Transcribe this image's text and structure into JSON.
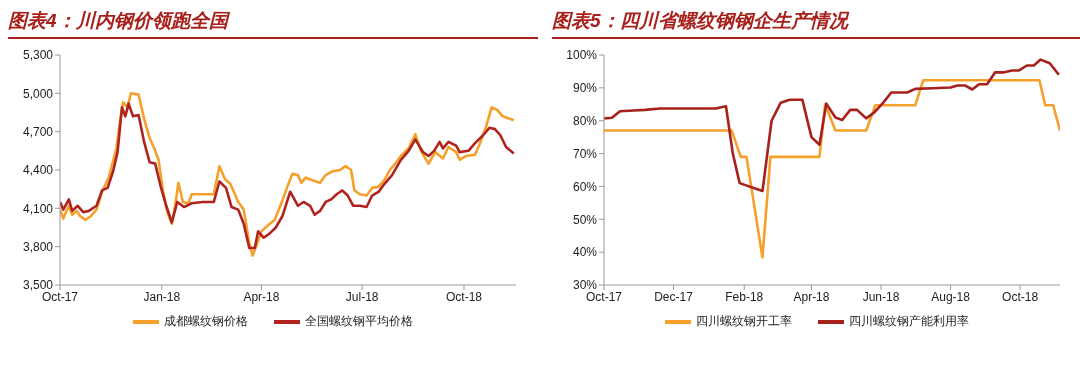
{
  "chart_data": [
    {
      "type": "line",
      "title": "图表4：川内钢价领跑全国",
      "legend": "bottom",
      "xlim": [
        "2017-10-01",
        "2018-11-17"
      ],
      "ylim": [
        3500,
        5300
      ],
      "xticks": [
        {
          "value": "2017-10-01",
          "label": "Oct-17"
        },
        {
          "value": "2018-01-01",
          "label": "Jan-18"
        },
        {
          "value": "2018-04-01",
          "label": "Apr-18"
        },
        {
          "value": "2018-07-01",
          "label": "Jul-18"
        },
        {
          "value": "2018-10-01",
          "label": "Oct-18"
        }
      ],
      "yticks": [
        {
          "value": 3500,
          "label": "3,500"
        },
        {
          "value": 3800,
          "label": "3,800"
        },
        {
          "value": 4100,
          "label": "4,100"
        },
        {
          "value": 4400,
          "label": "4,400"
        },
        {
          "value": 4700,
          "label": "4,700"
        },
        {
          "value": 5000,
          "label": "5,000"
        },
        {
          "value": 5300,
          "label": "5,300"
        }
      ],
      "series": [
        {
          "name": "成都螺纹钢价格",
          "color": "#f5a02a",
          "x": [
            "2017-10-01",
            "2017-10-04",
            "2017-10-09",
            "2017-10-12",
            "2017-10-16",
            "2017-10-19",
            "2017-10-24",
            "2017-10-29",
            "2017-11-03",
            "2017-11-08",
            "2017-11-14",
            "2017-11-21",
            "2017-11-24",
            "2017-11-27",
            "2017-12-01",
            "2017-12-04",
            "2017-12-11",
            "2017-12-16",
            "2017-12-21",
            "2017-12-26",
            "2017-12-29",
            "2018-01-02",
            "2018-01-06",
            "2018-01-10",
            "2018-01-13",
            "2018-01-16",
            "2018-01-20",
            "2018-01-25",
            "2018-01-28",
            "2018-02-07",
            "2018-02-17",
            "2018-02-22",
            "2018-02-27",
            "2018-03-04",
            "2018-03-11",
            "2018-03-16",
            "2018-03-21",
            "2018-03-24",
            "2018-03-28",
            "2018-04-01",
            "2018-04-06",
            "2018-04-13",
            "2018-04-19",
            "2018-04-24",
            "2018-04-29",
            "2018-05-04",
            "2018-05-07",
            "2018-05-11",
            "2018-05-17",
            "2018-05-24",
            "2018-05-29",
            "2018-06-04",
            "2018-06-11",
            "2018-06-16",
            "2018-06-21",
            "2018-06-24",
            "2018-06-29",
            "2018-07-05",
            "2018-07-10",
            "2018-07-16",
            "2018-07-21",
            "2018-07-26",
            "2018-07-31",
            "2018-08-05",
            "2018-08-12",
            "2018-08-18",
            "2018-08-23",
            "2018-08-30",
            "2018-09-05",
            "2018-09-12",
            "2018-09-17",
            "2018-09-24",
            "2018-09-27",
            "2018-10-03",
            "2018-10-11",
            "2018-10-16",
            "2018-10-21",
            "2018-10-26",
            "2018-10-31",
            "2018-11-05",
            "2018-11-15"
          ],
          "values": [
            4090,
            4020,
            4120,
            4050,
            4080,
            4040,
            4010,
            4040,
            4090,
            4230,
            4340,
            4570,
            4770,
            4930,
            4890,
            5000,
            4990,
            4800,
            4650,
            4550,
            4480,
            4240,
            4070,
            3980,
            4120,
            4300,
            4150,
            4140,
            4210,
            4210,
            4210,
            4430,
            4330,
            4290,
            4150,
            4090,
            3830,
            3730,
            3820,
            3920,
            3960,
            4010,
            4140,
            4260,
            4370,
            4360,
            4300,
            4340,
            4320,
            4300,
            4360,
            4390,
            4400,
            4430,
            4400,
            4240,
            4210,
            4200,
            4260,
            4270,
            4320,
            4400,
            4450,
            4510,
            4570,
            4680,
            4550,
            4450,
            4540,
            4490,
            4580,
            4540,
            4480,
            4510,
            4520,
            4620,
            4740,
            4890,
            4870,
            4820,
            4790
          ]
        },
        {
          "name": "全国螺纹钢平均价格",
          "color": "#b0241f",
          "x": [
            "2017-10-01",
            "2017-10-04",
            "2017-10-09",
            "2017-10-12",
            "2017-10-17",
            "2017-10-22",
            "2017-10-27",
            "2017-11-03",
            "2017-11-08",
            "2017-11-13",
            "2017-11-18",
            "2017-11-22",
            "2017-11-26",
            "2017-11-29",
            "2017-12-02",
            "2017-12-06",
            "2017-12-11",
            "2017-12-16",
            "2017-12-21",
            "2017-12-26",
            "2017-12-31",
            "2018-01-05",
            "2018-01-10",
            "2018-01-15",
            "2018-01-21",
            "2018-01-28",
            "2018-02-07",
            "2018-02-17",
            "2018-02-22",
            "2018-02-28",
            "2018-03-05",
            "2018-03-11",
            "2018-03-16",
            "2018-03-21",
            "2018-03-26",
            "2018-03-29",
            "2018-04-03",
            "2018-04-08",
            "2018-04-14",
            "2018-04-20",
            "2018-04-27",
            "2018-05-04",
            "2018-05-09",
            "2018-05-15",
            "2018-05-19",
            "2018-05-24",
            "2018-05-29",
            "2018-06-03",
            "2018-06-08",
            "2018-06-13",
            "2018-06-18",
            "2018-06-23",
            "2018-06-29",
            "2018-07-05",
            "2018-07-10",
            "2018-07-16",
            "2018-07-21",
            "2018-07-28",
            "2018-08-05",
            "2018-08-12",
            "2018-08-18",
            "2018-08-25",
            "2018-08-30",
            "2018-09-04",
            "2018-09-09",
            "2018-09-12",
            "2018-09-17",
            "2018-09-24",
            "2018-09-27",
            "2018-10-05",
            "2018-10-11",
            "2018-10-18",
            "2018-10-24",
            "2018-10-29",
            "2018-11-03",
            "2018-11-08",
            "2018-11-15"
          ],
          "values": [
            4150,
            4090,
            4170,
            4080,
            4120,
            4070,
            4080,
            4120,
            4240,
            4260,
            4390,
            4540,
            4890,
            4820,
            4920,
            4820,
            4830,
            4620,
            4460,
            4450,
            4270,
            4120,
            3990,
            4150,
            4110,
            4140,
            4150,
            4150,
            4310,
            4260,
            4110,
            4090,
            3980,
            3790,
            3790,
            3920,
            3870,
            3900,
            3950,
            4040,
            4230,
            4120,
            4150,
            4120,
            4050,
            4080,
            4150,
            4170,
            4210,
            4240,
            4200,
            4120,
            4120,
            4110,
            4200,
            4230,
            4290,
            4360,
            4480,
            4550,
            4640,
            4540,
            4510,
            4550,
            4620,
            4570,
            4620,
            4590,
            4540,
            4550,
            4610,
            4670,
            4730,
            4720,
            4670,
            4580,
            4530
          ]
        }
      ]
    },
    {
      "type": "line",
      "title": "图表5：四川省螺纹钢钢企生产情况",
      "legend": "bottom",
      "xlim": [
        "2017-10-01",
        "2018-11-05"
      ],
      "ylim": [
        30,
        100
      ],
      "xticks": [
        {
          "value": "2017-10-01",
          "label": "Oct-17"
        },
        {
          "value": "2017-12-01",
          "label": "Dec-17"
        },
        {
          "value": "2018-02-01",
          "label": "Feb-18"
        },
        {
          "value": "2018-04-01",
          "label": "Apr-18"
        },
        {
          "value": "2018-06-01",
          "label": "Jun-18"
        },
        {
          "value": "2018-08-01",
          "label": "Aug-18"
        },
        {
          "value": "2018-10-01",
          "label": "Oct-18"
        }
      ],
      "yticks": [
        {
          "value": 30,
          "label": "30%"
        },
        {
          "value": 40,
          "label": "40%"
        },
        {
          "value": 50,
          "label": "50%"
        },
        {
          "value": 60,
          "label": "60%"
        },
        {
          "value": 70,
          "label": "70%"
        },
        {
          "value": 80,
          "label": "80%"
        },
        {
          "value": 90,
          "label": "90%"
        },
        {
          "value": 100,
          "label": "100%"
        }
      ],
      "series": [
        {
          "name": "四川螺纹钢开工率",
          "color": "#f5a02a",
          "x": [
            "2017-10-01",
            "2018-01-21",
            "2018-01-29",
            "2018-02-03",
            "2018-02-17",
            "2018-02-24",
            "2018-04-08",
            "2018-04-13",
            "2018-04-22",
            "2018-05-19",
            "2018-05-27",
            "2018-07-01",
            "2018-07-08",
            "2018-10-18",
            "2018-10-23",
            "2018-10-30",
            "2018-11-05"
          ],
          "values": [
            77,
            77,
            69,
            69,
            38.4,
            69,
            69,
            85,
            77,
            77,
            84.7,
            84.7,
            92.3,
            92.3,
            84.7,
            84.7,
            77
          ]
        },
        {
          "name": "四川螺纹钢产能利用率",
          "color": "#a8201c",
          "x": [
            "2017-10-01",
            "2017-10-08",
            "2017-10-15",
            "2017-10-27",
            "2017-11-06",
            "2017-11-19",
            "2017-12-14",
            "2018-01-07",
            "2018-01-16",
            "2018-01-22",
            "2018-01-28",
            "2018-02-17",
            "2018-02-25",
            "2018-03-05",
            "2018-03-13",
            "2018-03-24",
            "2018-04-01",
            "2018-04-08",
            "2018-04-14",
            "2018-04-22",
            "2018-04-28",
            "2018-05-05",
            "2018-05-11",
            "2018-05-19",
            "2018-05-26",
            "2018-06-03",
            "2018-06-10",
            "2018-06-24",
            "2018-07-01",
            "2018-07-16",
            "2018-08-01",
            "2018-08-07",
            "2018-08-14",
            "2018-08-20",
            "2018-08-26",
            "2018-09-02",
            "2018-09-09",
            "2018-09-16",
            "2018-09-24",
            "2018-09-30",
            "2018-10-07",
            "2018-10-13",
            "2018-10-19",
            "2018-10-27",
            "2018-11-04"
          ],
          "values": [
            80.7,
            80.9,
            82.9,
            83.1,
            83.3,
            83.7,
            83.7,
            83.7,
            84.4,
            70,
            61,
            58.6,
            80,
            85.5,
            86.4,
            86.4,
            75,
            72.7,
            85.2,
            81,
            80.2,
            83.3,
            83.3,
            80.7,
            82.5,
            85.5,
            88.6,
            88.6,
            89.7,
            89.9,
            90.1,
            90.7,
            90.7,
            89.5,
            91.1,
            91.1,
            94.7,
            94.7,
            95.3,
            95.3,
            96.8,
            96.8,
            98.6,
            97.5,
            94
          ]
        }
      ]
    }
  ]
}
